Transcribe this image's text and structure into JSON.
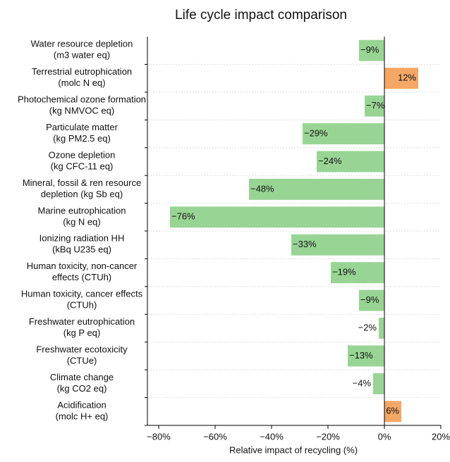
{
  "chart_data": {
    "type": "barh",
    "title": "Life cycle impact comparison",
    "x_label": "Relative impact of recycling (%)",
    "categories": [
      "Water resource depletion\n(m3 water eq)",
      "Terrestrial eutrophication\n(molc N eq)",
      "Photochemical ozone formation\n(kg NMVOC eq)",
      "Particulate matter\n(kg PM2.5 eq)",
      "Ozone depletion\n(kg CFC-11 eq)",
      "Mineral, fossil & ren resource\ndepletion (kg Sb eq)",
      "Marine eutrophication\n(kg N eq)",
      "Ionizing radiation HH\n(kBq U235 eq)",
      "Human toxicity, non-cancer\neffects (CTUh)",
      "Human toxicity, cancer effects\n(CTUh)",
      "Freshwater eutrophication\n(kg P eq)",
      "Freshwater ecotoxicity\n(CTUe)",
      "Climate change\n(kg CO2 eq)",
      "Acidification\n(molc H+ eq)"
    ],
    "values": [
      -9,
      12,
      -7,
      -29,
      -24,
      -48,
      -76,
      -33,
      -19,
      -9,
      -2,
      -13,
      -4,
      6
    ],
    "value_labels": [
      "−9%",
      "12%",
      "−7%",
      "−29%",
      "−24%",
      "−48%",
      "−76%",
      "−33%",
      "−19%",
      "−9%",
      "−2%",
      "−13%",
      "−4%",
      "6%"
    ],
    "negative_color": "#98d594",
    "positive_color": "#f5a766",
    "xlim": [
      -84,
      20
    ],
    "xticks": [
      {
        "value": -80,
        "label": "−80%"
      },
      {
        "value": -60,
        "label": "−60%"
      },
      {
        "value": -40,
        "label": "−40%"
      },
      {
        "value": -20,
        "label": "−20%"
      },
      {
        "value": 0,
        "label": "0%"
      },
      {
        "value": 20,
        "label": "20%"
      }
    ]
  }
}
